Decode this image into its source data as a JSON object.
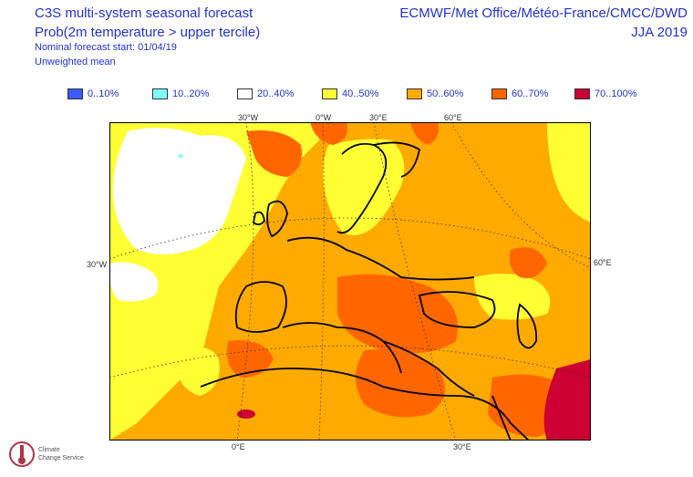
{
  "header": {
    "title": "C3S multi-system seasonal forecast",
    "subtitle": "Prob(2m temperature > upper tercile)",
    "forecast_start": "Nominal forecast start: 01/04/19",
    "mean_type": "Unweighted mean",
    "provider": "ECMWF/Met Office/Météo-France/CMCC/DWD",
    "season": "JJA 2019"
  },
  "legend": [
    {
      "label": "0..10%",
      "color": "#3b5bff"
    },
    {
      "label": "10..20%",
      "color": "#7fffff"
    },
    {
      "label": "20..40%",
      "color": "#ffffff"
    },
    {
      "label": "40..50%",
      "color": "#ffff33"
    },
    {
      "label": "50..60%",
      "color": "#ffaa00"
    },
    {
      "label": "60..70%",
      "color": "#ff6600"
    },
    {
      "label": "70..100%",
      "color": "#cc0033"
    }
  ],
  "axis_labels": {
    "top": [
      "30°W",
      "0°W",
      "30°E",
      "60°E"
    ],
    "left": "30°W",
    "right": "60°E",
    "bottom": [
      "0°E",
      "30°E"
    ]
  },
  "logo": {
    "text_line1": "Climate",
    "text_line2": "Change Service"
  }
}
